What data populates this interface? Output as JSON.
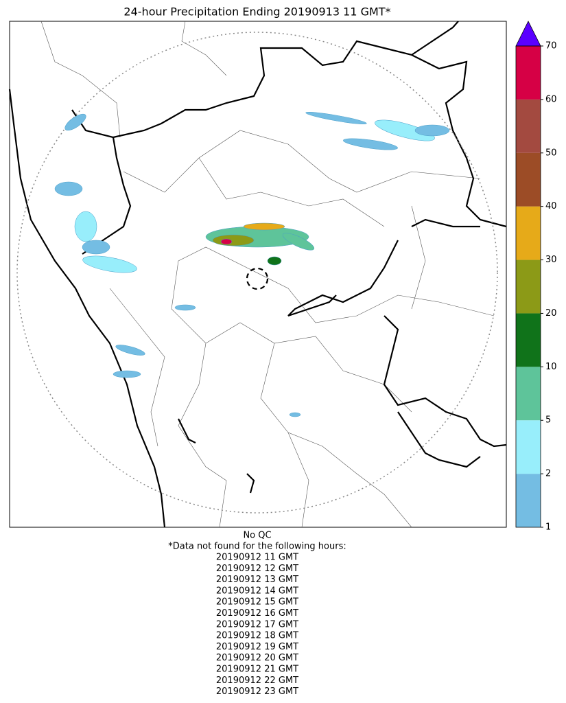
{
  "title": "24-hour Precipitation Ending 20190913 11 GMT*",
  "colorbar": {
    "ticks": [
      1,
      2,
      5,
      10,
      20,
      30,
      40,
      50,
      60,
      70
    ],
    "colors": [
      "#74bde3",
      "#98eefb",
      "#5ec49a",
      "#10731a",
      "#8c9a17",
      "#e6aa19",
      "#9c4c26",
      "#a34a40",
      "#d60045"
    ],
    "extend_color": "#5a00ff"
  },
  "notes": {
    "qc": "No QC",
    "header": "*Data not found for the following hours:",
    "hours": [
      "20190912 11 GMT",
      "20190912 12 GMT",
      "20190912 13 GMT",
      "20190912 14 GMT",
      "20190912 15 GMT",
      "20190912 16 GMT",
      "20190912 17 GMT",
      "20190912 18 GMT",
      "20190912 19 GMT",
      "20190912 20 GMT",
      "20190912 21 GMT",
      "20190912 22 GMT",
      "20190912 23 GMT"
    ]
  }
}
